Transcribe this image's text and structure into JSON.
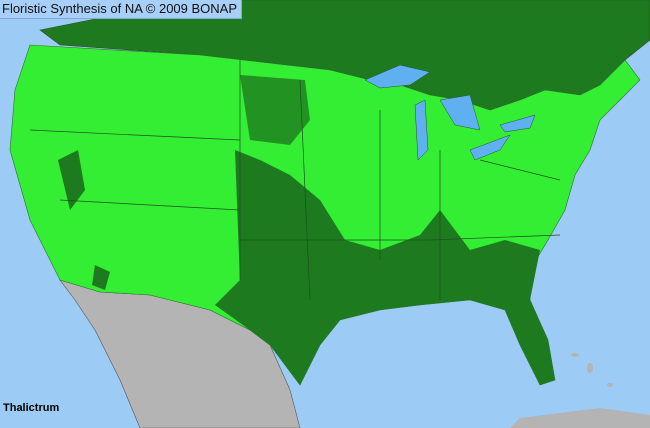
{
  "header": {
    "title": "Floristic Synthesis of NA © 2009 BONAP"
  },
  "map": {
    "taxon": "Thalictrum",
    "colors": {
      "ocean": "#9ccbf5",
      "present_county": "#33ee33",
      "native_state_or_province": "#1e7a1e",
      "outside_range": "#b4b4b4",
      "lakes": "#5fb0f0",
      "borders": "#2f4f2f"
    }
  }
}
